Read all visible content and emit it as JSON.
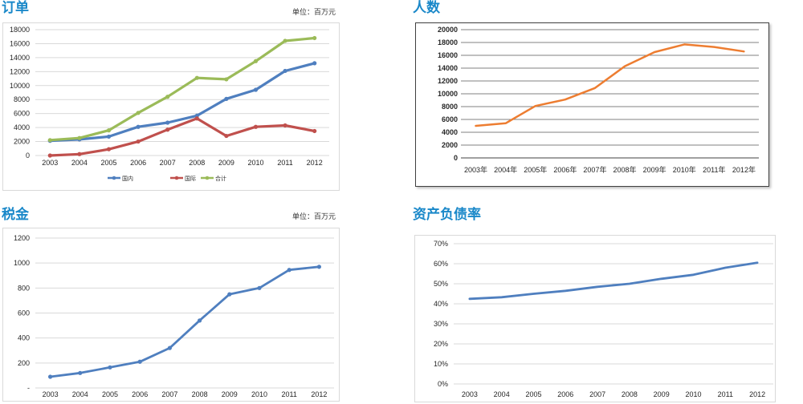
{
  "chart_data": [
    {
      "type": "line",
      "title": "订单",
      "unit_note": "单位：百万元",
      "categories": [
        "2003",
        "2004",
        "2005",
        "2006",
        "2007",
        "2008",
        "2009",
        "2010",
        "2011",
        "2012"
      ],
      "yticks": [
        "0",
        "2000",
        "4000",
        "6000",
        "8000",
        "10000",
        "12000",
        "14000",
        "16000",
        "18000"
      ],
      "ylim": [
        0,
        18000
      ],
      "grid": true,
      "legend_position": "bottom",
      "series": [
        {
          "name": "国内",
          "color": "#4f7fbf",
          "values": [
            2100,
            2300,
            2700,
            4100,
            4700,
            5700,
            8100,
            9400,
            12100,
            13200
          ]
        },
        {
          "name": "国际",
          "color": "#c0504d",
          "values": [
            0,
            200,
            900,
            2000,
            3700,
            5300,
            2800,
            4100,
            4300,
            3500
          ]
        },
        {
          "name": "合计",
          "color": "#9bbb59",
          "values": [
            2200,
            2500,
            3600,
            6100,
            8400,
            11100,
            10900,
            13500,
            16400,
            16800
          ]
        }
      ]
    },
    {
      "type": "line",
      "title": "人数",
      "categories": [
        "2003年",
        "2004年",
        "2005年",
        "2006年",
        "2007年",
        "2008年",
        "2009年",
        "2010年",
        "2011年",
        "2012年"
      ],
      "yticks": [
        "0",
        "2000",
        "4000",
        "6000",
        "8000",
        "10000",
        "12000",
        "14000",
        "16000",
        "18000",
        "20000"
      ],
      "ylim": [
        0,
        20000
      ],
      "grid": true,
      "series": [
        {
          "name": "",
          "color": "#ed7d31",
          "values": [
            5000,
            5400,
            8100,
            9100,
            10900,
            14300,
            16500,
            17700,
            17300,
            16600
          ]
        }
      ]
    },
    {
      "type": "line",
      "title": "税金",
      "unit_note": "单位：百万元",
      "categories": [
        "2003",
        "2004",
        "2005",
        "2006",
        "2007",
        "2008",
        "2009",
        "2010",
        "2011",
        "2012"
      ],
      "yticks": [
        "-",
        "200",
        "400",
        "600",
        "800",
        "1000",
        "1200"
      ],
      "ylim": [
        0,
        1200
      ],
      "grid": true,
      "series": [
        {
          "name": "",
          "color": "#4f7fbf",
          "values": [
            90,
            120,
            165,
            210,
            320,
            540,
            750,
            800,
            945,
            970
          ]
        }
      ]
    },
    {
      "type": "line",
      "title": "资产负债率",
      "categories": [
        "2003",
        "2004",
        "2005",
        "2006",
        "2007",
        "2008",
        "2009",
        "2010",
        "2011",
        "2012"
      ],
      "yticks": [
        "0%",
        "10%",
        "20%",
        "30%",
        "40%",
        "50%",
        "60%",
        "70%"
      ],
      "ylim": [
        0,
        70
      ],
      "grid": true,
      "series": [
        {
          "name": "",
          "color": "#4f7fbf",
          "values": [
            42.5,
            43.3,
            45,
            46.5,
            48.5,
            50,
            52.5,
            54.5,
            58,
            60.5
          ]
        }
      ]
    }
  ]
}
